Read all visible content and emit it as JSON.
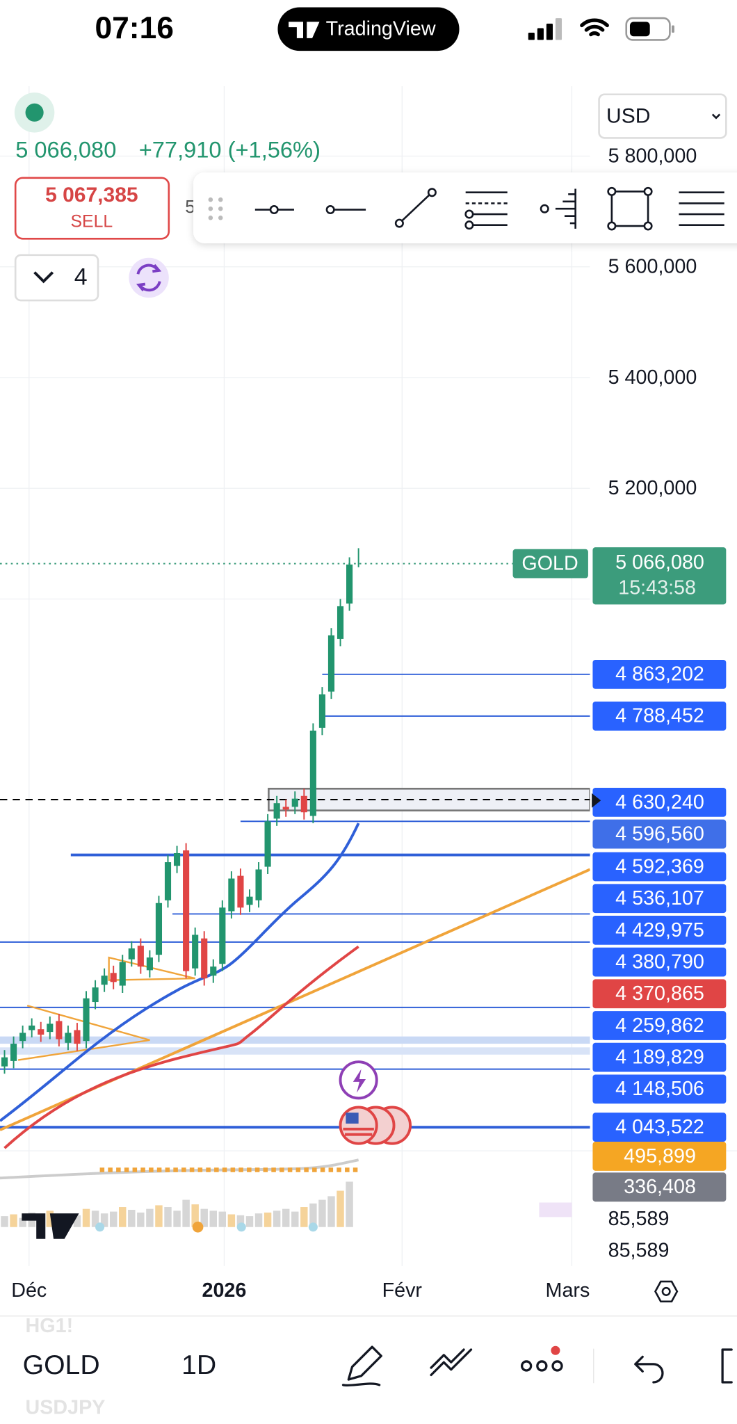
{
  "status_bar": {
    "time": "07:16",
    "app": "TradingView"
  },
  "header": {
    "currency": "USD",
    "price": "5 066,080",
    "change": "+77,910 (+1,56%)",
    "sell_price": "5 067,385",
    "sell_label": "SELL",
    "buy_partial": "5",
    "interval_count": "4"
  },
  "price_axis": {
    "labels": [
      "5 800,000",
      "5 600,000",
      "5 400,000",
      "5 200,000"
    ]
  },
  "last_price": {
    "symbol": "GOLD",
    "price": "5 066,080",
    "countdown": "15:43:58",
    "color": "#3c9c7c"
  },
  "price_tags": [
    {
      "label": "4 863,202",
      "color": "#2962ff"
    },
    {
      "label": "4 788,452",
      "color": "#2962ff"
    },
    {
      "label": "4 630,240",
      "color": "#2962ff"
    },
    {
      "label": "4 596,560",
      "color": "#3f6fe8"
    },
    {
      "label": "4 592,369",
      "color": "#2962ff"
    },
    {
      "label": "4 536,107",
      "color": "#2962ff"
    },
    {
      "label": "4 429,975",
      "color": "#2962ff"
    },
    {
      "label": "4 380,790",
      "color": "#2962ff"
    },
    {
      "label": "4 370,865",
      "color": "#e04545"
    },
    {
      "label": "4 259,862",
      "color": "#2962ff"
    },
    {
      "label": "4 189,829",
      "color": "#2962ff"
    },
    {
      "label": "4 148,506",
      "color": "#2962ff"
    },
    {
      "label": "4 043,522",
      "color": "#2962ff"
    },
    {
      "label": "495,899",
      "color": "#f5a623"
    },
    {
      "label": "336,408",
      "color": "#787b86"
    }
  ],
  "volume_labels": [
    "85,589",
    "85,589"
  ],
  "time_axis": {
    "labels": [
      "Déc",
      "2026",
      "Févr",
      "Mars"
    ]
  },
  "bottom_bar": {
    "symbol": "GOLD",
    "interval": "1D",
    "prev_symbol": "HG1!",
    "next_symbol": "USDJPY"
  }
}
